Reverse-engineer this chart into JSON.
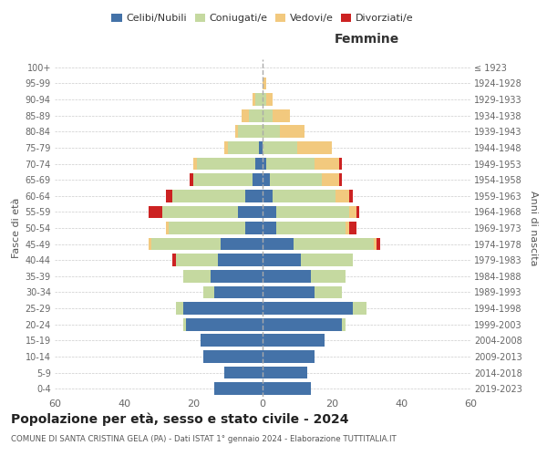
{
  "age_groups": [
    "0-4",
    "5-9",
    "10-14",
    "15-19",
    "20-24",
    "25-29",
    "30-34",
    "35-39",
    "40-44",
    "45-49",
    "50-54",
    "55-59",
    "60-64",
    "65-69",
    "70-74",
    "75-79",
    "80-84",
    "85-89",
    "90-94",
    "95-99",
    "100+"
  ],
  "birth_years": [
    "2019-2023",
    "2014-2018",
    "2009-2013",
    "2004-2008",
    "1999-2003",
    "1994-1998",
    "1989-1993",
    "1984-1988",
    "1979-1983",
    "1974-1978",
    "1969-1973",
    "1964-1968",
    "1959-1963",
    "1954-1958",
    "1949-1953",
    "1944-1948",
    "1939-1943",
    "1934-1938",
    "1929-1933",
    "1924-1928",
    "≤ 1923"
  ],
  "males": {
    "celibi": [
      14,
      11,
      17,
      18,
      22,
      23,
      14,
      15,
      13,
      12,
      5,
      7,
      5,
      3,
      2,
      1,
      0,
      0,
      0,
      0,
      0
    ],
    "coniugati": [
      0,
      0,
      0,
      0,
      1,
      2,
      3,
      8,
      12,
      20,
      22,
      22,
      21,
      17,
      17,
      9,
      7,
      4,
      2,
      0,
      0
    ],
    "vedovi": [
      0,
      0,
      0,
      0,
      0,
      0,
      0,
      0,
      0,
      1,
      1,
      0,
      0,
      0,
      1,
      1,
      1,
      2,
      1,
      0,
      0
    ],
    "divorziati": [
      0,
      0,
      0,
      0,
      0,
      0,
      0,
      0,
      1,
      0,
      0,
      4,
      2,
      1,
      0,
      0,
      0,
      0,
      0,
      0,
      0
    ]
  },
  "females": {
    "nubili": [
      14,
      13,
      15,
      18,
      23,
      26,
      15,
      14,
      11,
      9,
      4,
      4,
      3,
      2,
      1,
      0,
      0,
      0,
      0,
      0,
      0
    ],
    "coniugate": [
      0,
      0,
      0,
      0,
      1,
      4,
      8,
      10,
      15,
      23,
      20,
      21,
      18,
      15,
      14,
      10,
      5,
      3,
      1,
      0,
      0
    ],
    "vedove": [
      0,
      0,
      0,
      0,
      0,
      0,
      0,
      0,
      0,
      1,
      1,
      2,
      4,
      5,
      7,
      10,
      7,
      5,
      2,
      1,
      0
    ],
    "divorziate": [
      0,
      0,
      0,
      0,
      0,
      0,
      0,
      0,
      0,
      1,
      2,
      1,
      1,
      1,
      1,
      0,
      0,
      0,
      0,
      0,
      0
    ]
  },
  "colors": {
    "celibi": "#4472a8",
    "coniugati": "#c5d9a0",
    "vedovi": "#f2c97e",
    "divorziati": "#cc2222"
  },
  "xlim": 60,
  "title": "Popolazione per età, sesso e stato civile - 2024",
  "subtitle": "COMUNE DI SANTA CRISTINA GELA (PA) - Dati ISTAT 1° gennaio 2024 - Elaborazione TUTTITALIA.IT",
  "ylabel_left": "Fasce di età",
  "ylabel_right": "Anni di nascita",
  "xlabel_right": "Femmine"
}
